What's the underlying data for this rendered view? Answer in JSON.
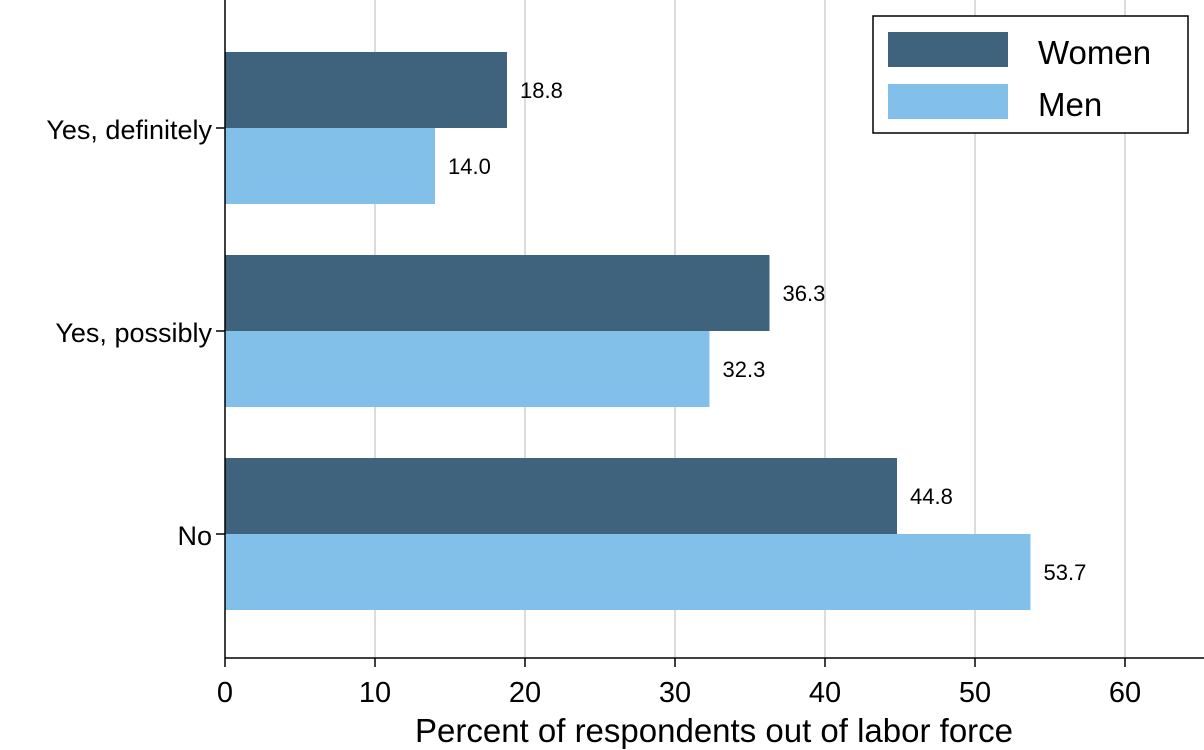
{
  "chart_data": {
    "type": "bar",
    "orientation": "horizontal",
    "categories": [
      "Yes, definitely",
      "Yes, possibly",
      "No"
    ],
    "series": [
      {
        "name": "Women",
        "values": [
          18.8,
          36.3,
          44.8
        ],
        "labels": [
          "18.8",
          "36.3",
          "44.8"
        ],
        "color": "#3f637c"
      },
      {
        "name": "Men",
        "values": [
          14.0,
          32.3,
          53.7
        ],
        "labels": [
          "14.0",
          "32.3",
          "53.7"
        ],
        "color": "#82c0ea"
      }
    ],
    "xlabel": "Percent of respondents out of labor force",
    "ylabel": "",
    "xlim": [
      0,
      65
    ],
    "xticks": [
      0,
      10,
      20,
      30,
      40,
      50,
      60
    ],
    "xtick_labels": [
      "0",
      "10",
      "20",
      "30",
      "40",
      "50",
      "60"
    ],
    "grid": "vertical",
    "legend": "top-right"
  }
}
